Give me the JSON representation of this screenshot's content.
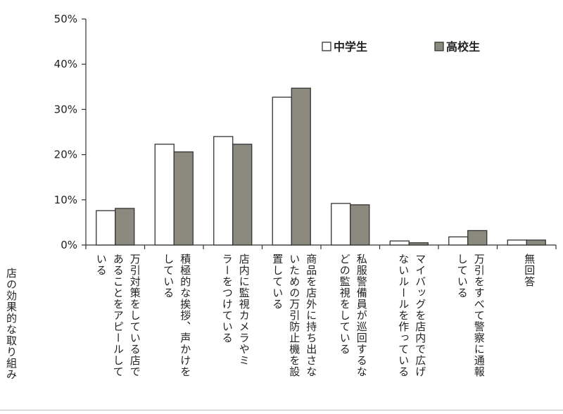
{
  "chart_data": {
    "type": "bar",
    "xlabel": "店の効果的な取り組み",
    "ylim": [
      0,
      50
    ],
    "yticks": [
      "0%",
      "10%",
      "20%",
      "30%",
      "40%",
      "50%"
    ],
    "categories": [
      "万引対策をしている店で\nあることをアピールして\nいる",
      "積極的な挨拶、声かけを\nしている",
      "店内に監視カメラやミ\nラーをつけている",
      "商品を店外に持ち出さな\nいための万引防止機を設\n置している",
      "私服警備員が巡回するな\nどの監視をしている",
      "マイバッグを店内で広げ\nないルールを作っている",
      "万引をすべて警察に通報\nしている",
      "無回答"
    ],
    "series": [
      {
        "name": "中学生",
        "color": "#ffffff",
        "values": [
          7.6,
          22.3,
          24.0,
          32.7,
          9.2,
          0.9,
          1.8,
          1.1
        ]
      },
      {
        "name": "高校生",
        "color": "#8c8a7e",
        "values": [
          8.1,
          20.6,
          22.3,
          34.7,
          8.9,
          0.5,
          3.2,
          1.1
        ]
      }
    ],
    "legend_position": "top-right",
    "grid": false
  }
}
